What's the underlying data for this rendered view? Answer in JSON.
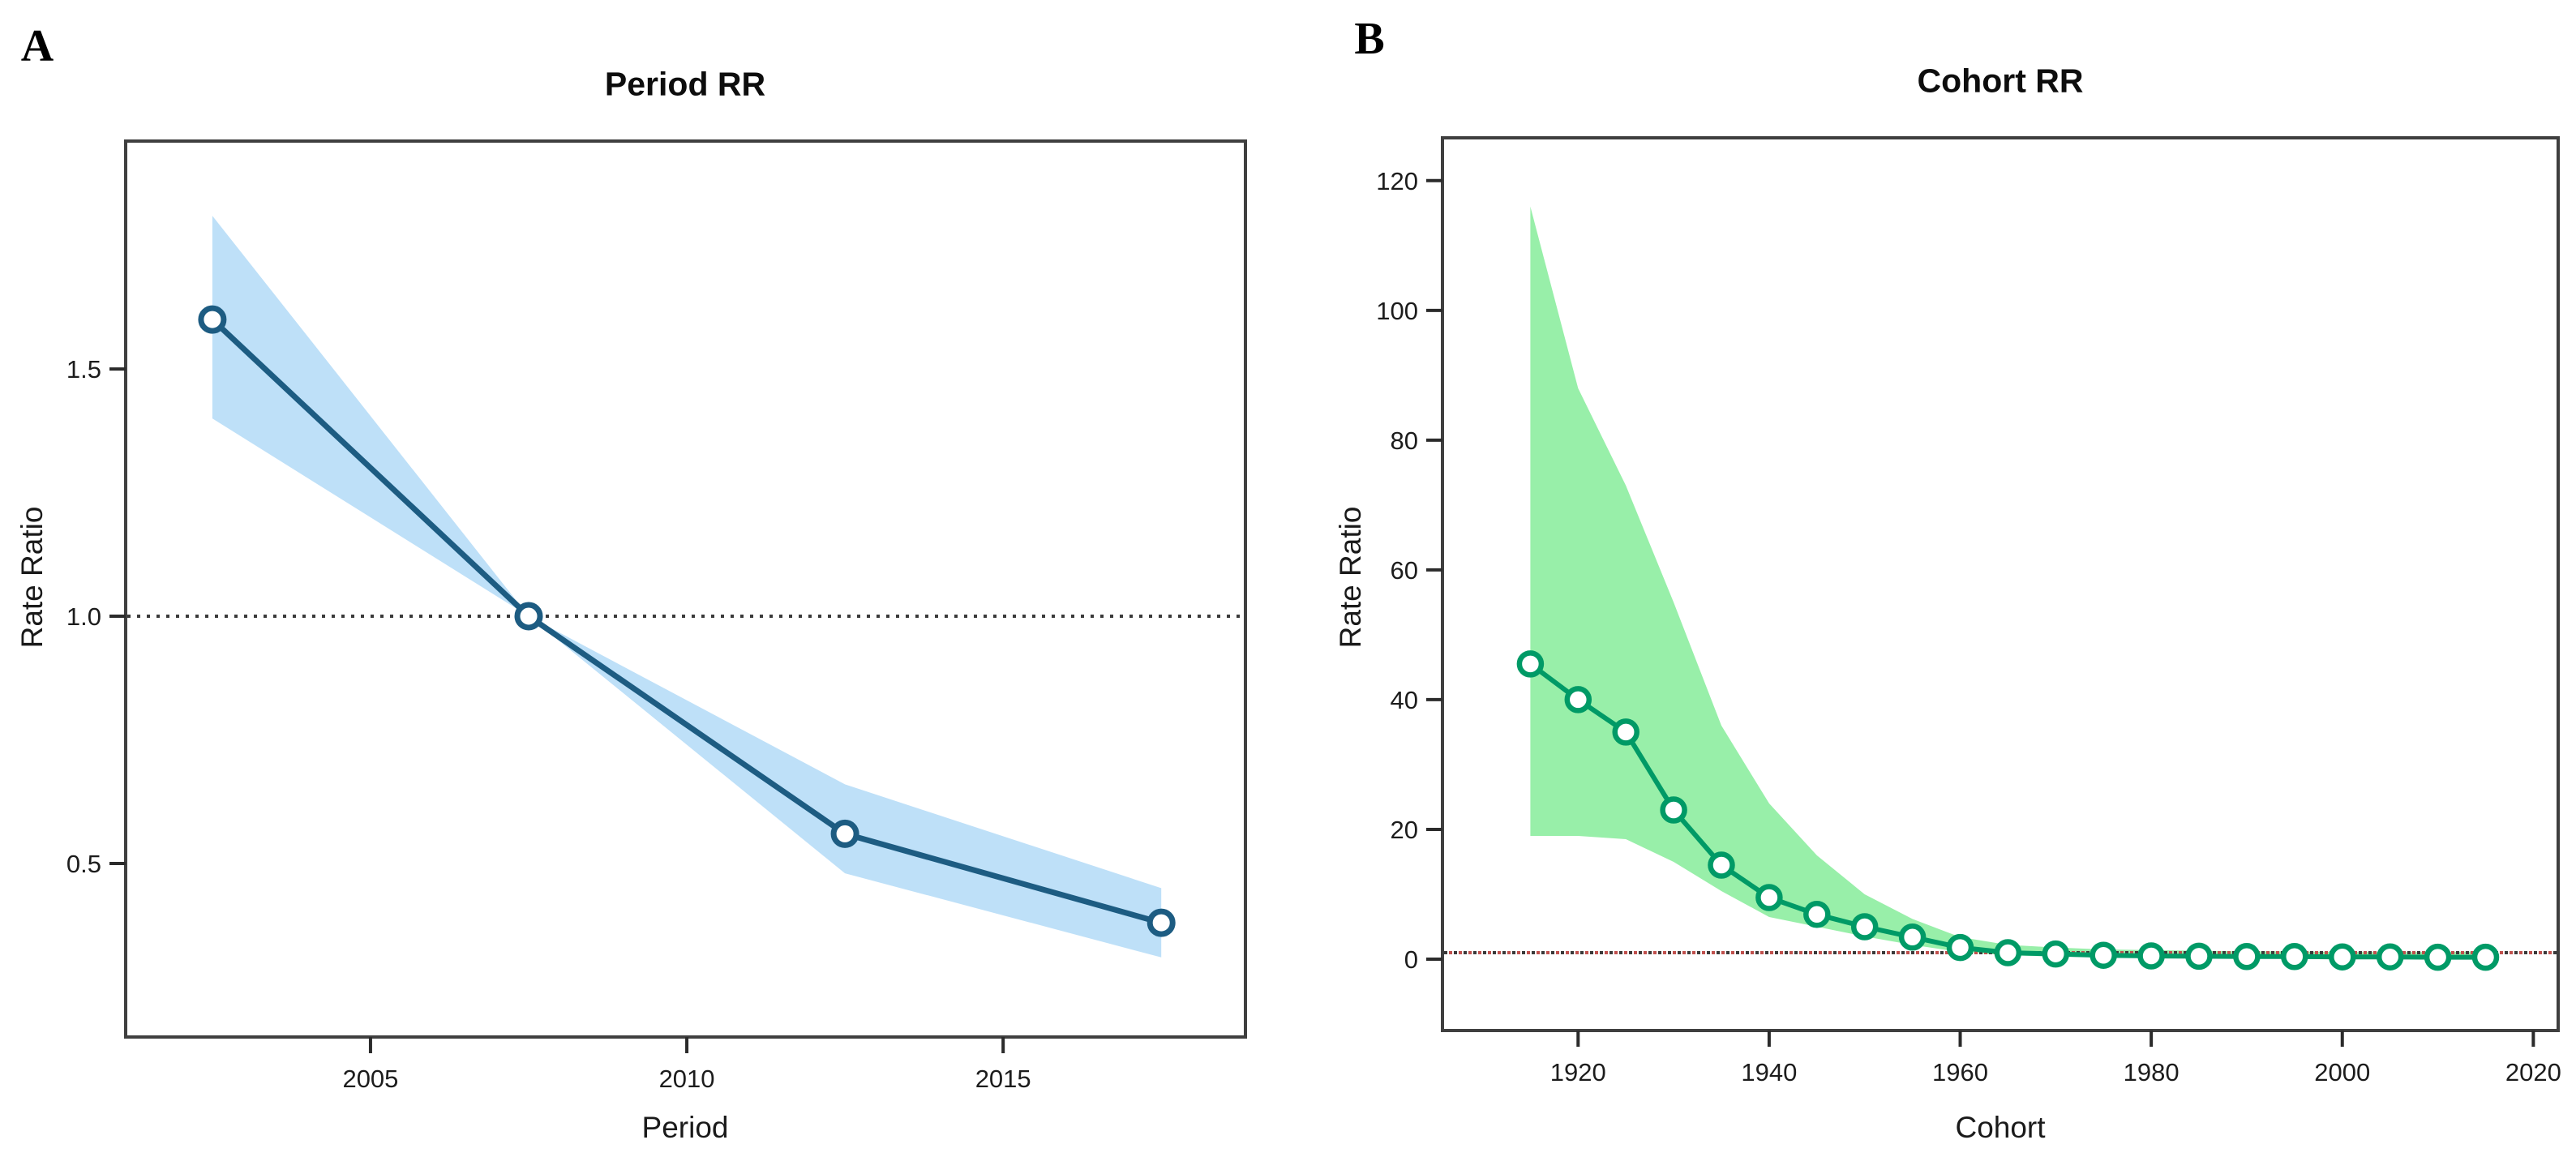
{
  "figure": {
    "background": "#ffffff",
    "panels": {
      "a": {
        "letter": "A",
        "title": "Period RR",
        "xlabel": "Period",
        "ylabel": "Rate Ratio"
      },
      "b": {
        "letter": "B",
        "title": "Cohort RR",
        "xlabel": "Cohort",
        "ylabel": "Rate Ratio"
      }
    }
  },
  "chart_data": [
    {
      "panel": "A",
      "type": "line",
      "title": "Period RR",
      "xlabel": "Period",
      "ylabel": "Rate Ratio",
      "grid": false,
      "legend": null,
      "x": [
        2002.5,
        2007.5,
        2012.5,
        2017.5
      ],
      "rr": [
        1.6,
        1.0,
        0.56,
        0.38
      ],
      "ci_lower": [
        1.4,
        1.0,
        0.48,
        0.31
      ],
      "ci_upper": [
        1.81,
        1.0,
        0.66,
        0.45
      ],
      "ref_line": 1.0,
      "x_ticks": [
        2005,
        2010,
        2015
      ],
      "x_tick_labels": [
        "2005",
        "2010",
        "2015"
      ],
      "y_ticks": [
        0.5,
        1.0,
        1.5
      ],
      "y_tick_labels": [
        "0.5",
        "1.0",
        "1.5"
      ],
      "xlim": [
        2001.13,
        2018.83
      ],
      "ylim": [
        0.149,
        1.961
      ],
      "colors": {
        "band": "#BEE0F8",
        "line": "#1D5C82",
        "marker_fill": "#ffffff",
        "ref": "#3a3a3a",
        "ref_accent": null,
        "frame": "#3f3f3f"
      }
    },
    {
      "panel": "B",
      "type": "line",
      "title": "Cohort RR",
      "xlabel": "Cohort",
      "ylabel": "Rate Ratio",
      "grid": false,
      "legend": null,
      "x": [
        1915,
        1920,
        1925,
        1930,
        1935,
        1940,
        1945,
        1950,
        1955,
        1960,
        1965,
        1970,
        1975,
        1980,
        1985,
        1990,
        1995,
        2000,
        2005,
        2010,
        2015
      ],
      "rr": [
        45.5,
        40,
        35,
        23,
        14.5,
        9.5,
        6.9,
        5.0,
        3.4,
        1.8,
        1.0,
        0.8,
        0.6,
        0.5,
        0.45,
        0.4,
        0.4,
        0.35,
        0.35,
        0.3,
        0.3
      ],
      "ci_lower": [
        19,
        19,
        18.5,
        15,
        10.5,
        6.5,
        5.0,
        3.5,
        2.2,
        1.1,
        0.6,
        0.4,
        0.3,
        0.25,
        0.2,
        0.2,
        0.2,
        0.2,
        0.2,
        0.15,
        0.15
      ],
      "ci_upper": [
        116,
        88,
        73,
        55,
        36,
        24,
        16,
        10,
        6.2,
        3.4,
        2.2,
        1.8,
        1.5,
        1.4,
        1.3,
        1.2,
        1.2,
        1.1,
        1.1,
        1.1,
        1.2
      ],
      "ref_line": 1.0,
      "x_ticks": [
        1920,
        1940,
        1960,
        1980,
        2000,
        2020
      ],
      "x_tick_labels": [
        "1920",
        "1940",
        "1960",
        "1980",
        "2000",
        "2020"
      ],
      "y_ticks": [
        0,
        20,
        40,
        60,
        80,
        100,
        120
      ],
      "y_tick_labels": [
        "0",
        "20",
        "40",
        "60",
        "80",
        "100",
        "120"
      ],
      "xlim": [
        1905.8,
        2022.6
      ],
      "ylim": [
        -11,
        126.6
      ],
      "colors": {
        "band": "#98EFA9",
        "line": "#009A66",
        "marker_fill": "#ffffff",
        "ref": "#3a3a3a",
        "ref_accent": "#C0504D",
        "frame": "#3f3f3f"
      }
    }
  ]
}
